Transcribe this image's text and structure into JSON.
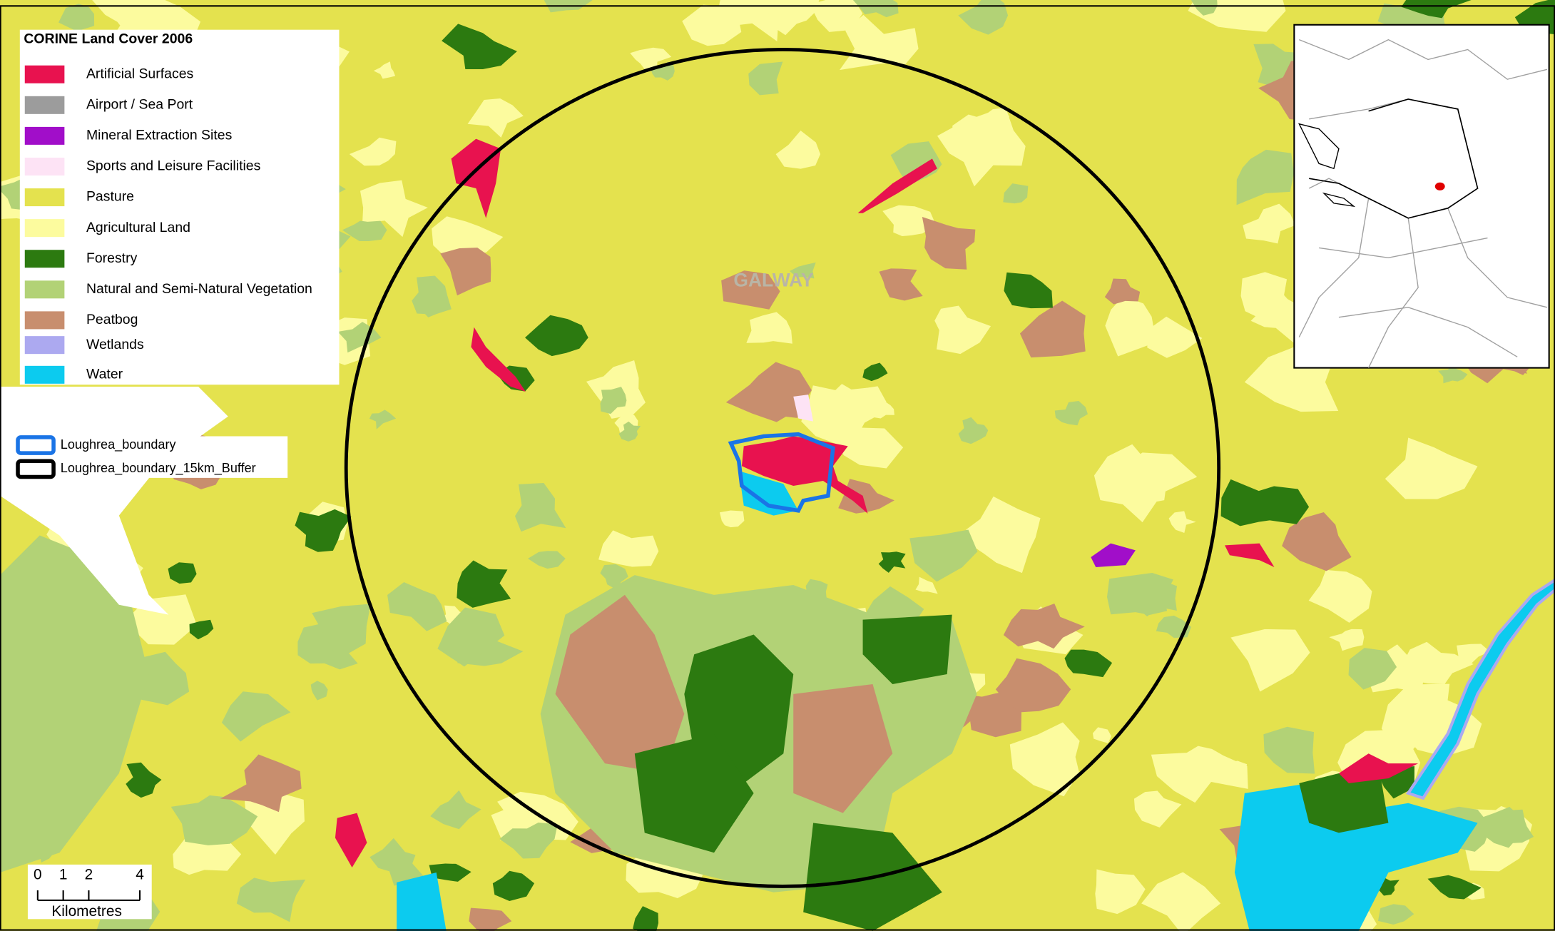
{
  "legend": {
    "title": "CORINE Land Cover 2006",
    "items": [
      {
        "label": "Artificial Surfaces",
        "color": "#e8124f"
      },
      {
        "label": "Airport / Sea Port",
        "color": "#9c9c9c"
      },
      {
        "label": "Mineral Extraction Sites",
        "color": "#a10ec9"
      },
      {
        "label": "Sports and Leisure Facilities",
        "color": "#fde3f5"
      },
      {
        "label": "Pasture",
        "color": "#e4e24e"
      },
      {
        "label": "Agricultural Land",
        "color": "#fcfb9e"
      },
      {
        "label": "Forestry",
        "color": "#2c7a10"
      },
      {
        "label": "Natural and Semi-Natural Vegetation",
        "color": "#b2d276"
      },
      {
        "label": "Peatbog",
        "color": "#c88e6e"
      },
      {
        "label": "Wetlands",
        "color": "#aca9f0"
      },
      {
        "label": "Water",
        "color": "#0ccbef"
      }
    ]
  },
  "boundary_legend": {
    "items": [
      {
        "label": "Loughrea_boundary",
        "color": "#1a74e6"
      },
      {
        "label": "Loughrea_boundary_15km_Buffer",
        "color": "#000000"
      }
    ]
  },
  "map_label": "GALWAY",
  "scale_bar": {
    "ticks": [
      0,
      1,
      2,
      4
    ],
    "unit": "Kilometres"
  }
}
